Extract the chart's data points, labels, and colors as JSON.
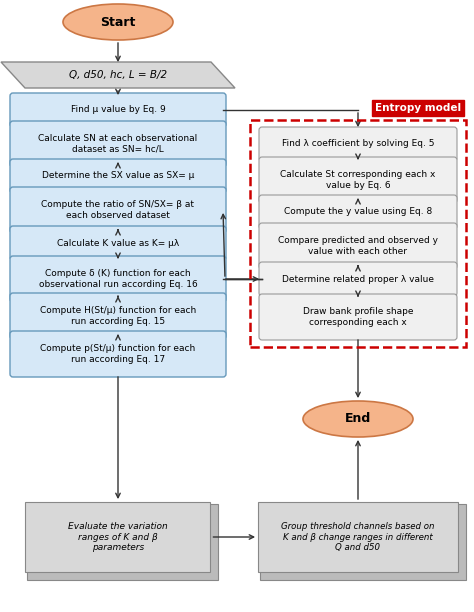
{
  "bg_color": "#ffffff",
  "left_boxes": [
    {
      "text": "Find μ value by Eq. 9",
      "lines": 1
    },
    {
      "text": "Calculate SN at each observational\ndataset as SN= hc/L",
      "lines": 2
    },
    {
      "text": "Determine the SX value as SX= μ",
      "lines": 1
    },
    {
      "text": "Compute the ratio of SN/SX= β at\neach observed dataset",
      "lines": 2
    },
    {
      "text": "Calculate K value as K= μλ",
      "lines": 1
    },
    {
      "text": "Compute δ (K) function for each\nobservational run according Eq. 16",
      "lines": 2
    },
    {
      "text": "Compute H(St/μ) function for each\nrun according Eq. 15",
      "lines": 2
    },
    {
      "text": "Compute p(St/μ) function for each\nrun according Eq. 17",
      "lines": 2
    }
  ],
  "right_boxes": [
    {
      "text": "Find λ coefficient by solving Eq. 5",
      "lines": 1
    },
    {
      "text": "Calculate St corresponding each x\nvalue by Eq. 6",
      "lines": 2
    },
    {
      "text": "Compute the y value using Eq. 8",
      "lines": 1
    },
    {
      "text": "Compare predicted and observed y\nvalue with each other",
      "lines": 2
    },
    {
      "text": "Determine related proper λ value",
      "lines": 1
    },
    {
      "text": "Draw bank profile shape\ncorresponding each x",
      "lines": 2
    }
  ],
  "left_box_color": "#d6e8f7",
  "left_box_edge": "#6699bb",
  "right_box_color": "#f0f0f0",
  "right_box_edge": "#999999",
  "start_fill": "#f5b48a",
  "start_edge": "#cc7744",
  "end_fill": "#f5b48a",
  "end_edge": "#cc7744",
  "input_fill": "#d8d8d8",
  "input_edge": "#888888",
  "bottom_fill": "#d8d8d8",
  "bottom_edge": "#888888",
  "arrow_color": "#333333",
  "entropy_label": "Entropy model",
  "entropy_text_color": "#ffffff",
  "entropy_bg": "#cc0000",
  "entropy_box_color": "#cc0000",
  "bottom_left_text": "Evaluate the variation\nranges of K and β\nparameters",
  "bottom_right_text": "Group threshold channels based on\nK and β change ranges in different\nQ and d50",
  "input_text": "Q, d50, hc, L = B/2"
}
